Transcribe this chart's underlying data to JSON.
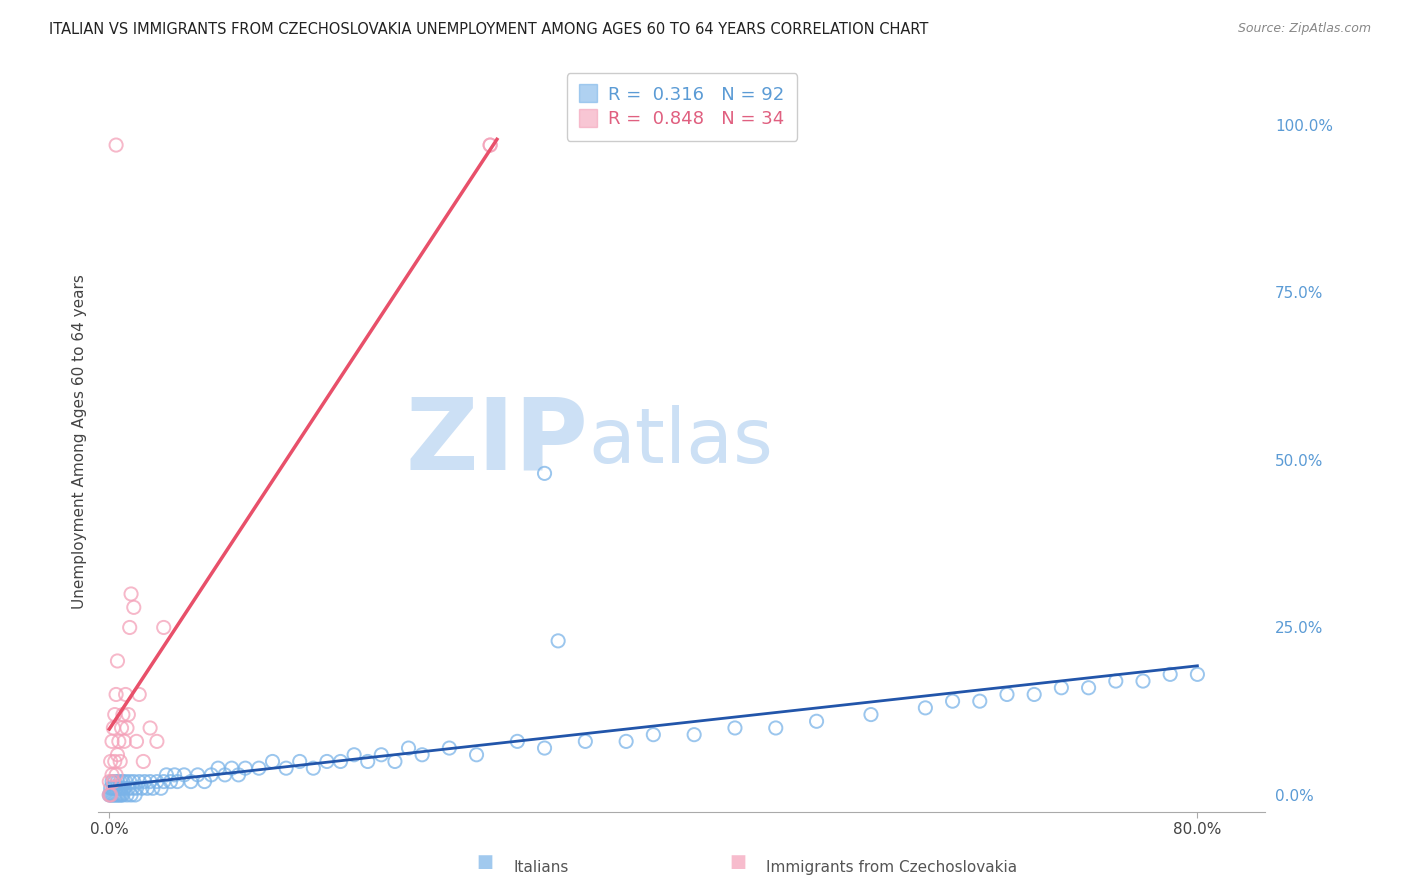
{
  "title": "ITALIAN VS IMMIGRANTS FROM CZECHOSLOVAKIA UNEMPLOYMENT AMONG AGES 60 TO 64 YEARS CORRELATION CHART",
  "source": "Source: ZipAtlas.com",
  "ylabel": "Unemployment Among Ages 60 to 64 years",
  "watermark_zip": "ZIP",
  "watermark_atlas": "atlas",
  "y_ticks_right": [
    0.0,
    0.25,
    0.5,
    0.75,
    1.0
  ],
  "y_tick_labels_right": [
    "0.0%",
    "25.0%",
    "50.0%",
    "75.0%",
    "100.0%"
  ],
  "xlim": [
    -0.008,
    0.85
  ],
  "ylim": [
    -0.025,
    1.08
  ],
  "italian_R": 0.316,
  "italian_N": 92,
  "czech_R": 0.848,
  "czech_N": 34,
  "italian_color": "#7ab3e8",
  "czech_color": "#f4a0b8",
  "italian_line_color": "#2255aa",
  "czech_line_color": "#e8506a",
  "legend_label_italian": "Italians",
  "legend_label_czech": "Immigrants from Czechoslovakia",
  "watermark_color": "#cce0f5",
  "background_color": "#ffffff",
  "it_x": [
    0.0,
    0.001,
    0.001,
    0.002,
    0.002,
    0.003,
    0.003,
    0.004,
    0.004,
    0.005,
    0.005,
    0.006,
    0.006,
    0.007,
    0.007,
    0.008,
    0.008,
    0.009,
    0.009,
    0.01,
    0.01,
    0.011,
    0.012,
    0.013,
    0.014,
    0.015,
    0.016,
    0.017,
    0.018,
    0.019,
    0.02,
    0.022,
    0.024,
    0.026,
    0.028,
    0.03,
    0.032,
    0.035,
    0.038,
    0.04,
    0.042,
    0.045,
    0.048,
    0.05,
    0.055,
    0.06,
    0.065,
    0.07,
    0.075,
    0.08,
    0.085,
    0.09,
    0.095,
    0.1,
    0.11,
    0.12,
    0.13,
    0.14,
    0.15,
    0.16,
    0.17,
    0.18,
    0.19,
    0.2,
    0.21,
    0.22,
    0.23,
    0.25,
    0.27,
    0.3,
    0.32,
    0.35,
    0.38,
    0.4,
    0.43,
    0.46,
    0.49,
    0.52,
    0.56,
    0.6,
    0.62,
    0.64,
    0.66,
    0.68,
    0.7,
    0.72,
    0.74,
    0.76,
    0.78,
    0.8,
    0.32,
    0.33
  ],
  "it_y": [
    0.0,
    0.0,
    0.01,
    0.0,
    0.02,
    0.0,
    0.01,
    0.0,
    0.02,
    0.0,
    0.01,
    0.0,
    0.02,
    0.0,
    0.01,
    0.0,
    0.02,
    0.0,
    0.01,
    0.02,
    0.0,
    0.01,
    0.02,
    0.0,
    0.01,
    0.02,
    0.0,
    0.01,
    0.02,
    0.0,
    0.01,
    0.02,
    0.01,
    0.02,
    0.01,
    0.02,
    0.01,
    0.02,
    0.01,
    0.02,
    0.03,
    0.02,
    0.03,
    0.02,
    0.03,
    0.02,
    0.03,
    0.02,
    0.03,
    0.04,
    0.03,
    0.04,
    0.03,
    0.04,
    0.04,
    0.05,
    0.04,
    0.05,
    0.04,
    0.05,
    0.05,
    0.06,
    0.05,
    0.06,
    0.05,
    0.07,
    0.06,
    0.07,
    0.06,
    0.08,
    0.07,
    0.08,
    0.08,
    0.09,
    0.09,
    0.1,
    0.1,
    0.11,
    0.12,
    0.13,
    0.14,
    0.14,
    0.15,
    0.15,
    0.16,
    0.16,
    0.17,
    0.17,
    0.18,
    0.18,
    0.48,
    0.23
  ],
  "cz_x": [
    0.0,
    0.0,
    0.001,
    0.001,
    0.002,
    0.002,
    0.003,
    0.003,
    0.004,
    0.004,
    0.005,
    0.005,
    0.006,
    0.006,
    0.007,
    0.008,
    0.009,
    0.01,
    0.011,
    0.012,
    0.013,
    0.014,
    0.015,
    0.016,
    0.018,
    0.02,
    0.022,
    0.025,
    0.03,
    0.035,
    0.04,
    0.28,
    0.28,
    0.005
  ],
  "cz_y": [
    0.0,
    0.02,
    0.0,
    0.05,
    0.03,
    0.08,
    0.02,
    0.1,
    0.05,
    0.12,
    0.03,
    0.15,
    0.06,
    0.2,
    0.08,
    0.05,
    0.1,
    0.12,
    0.08,
    0.15,
    0.1,
    0.12,
    0.25,
    0.3,
    0.28,
    0.08,
    0.15,
    0.05,
    0.1,
    0.08,
    0.25,
    0.97,
    0.97,
    0.97
  ]
}
